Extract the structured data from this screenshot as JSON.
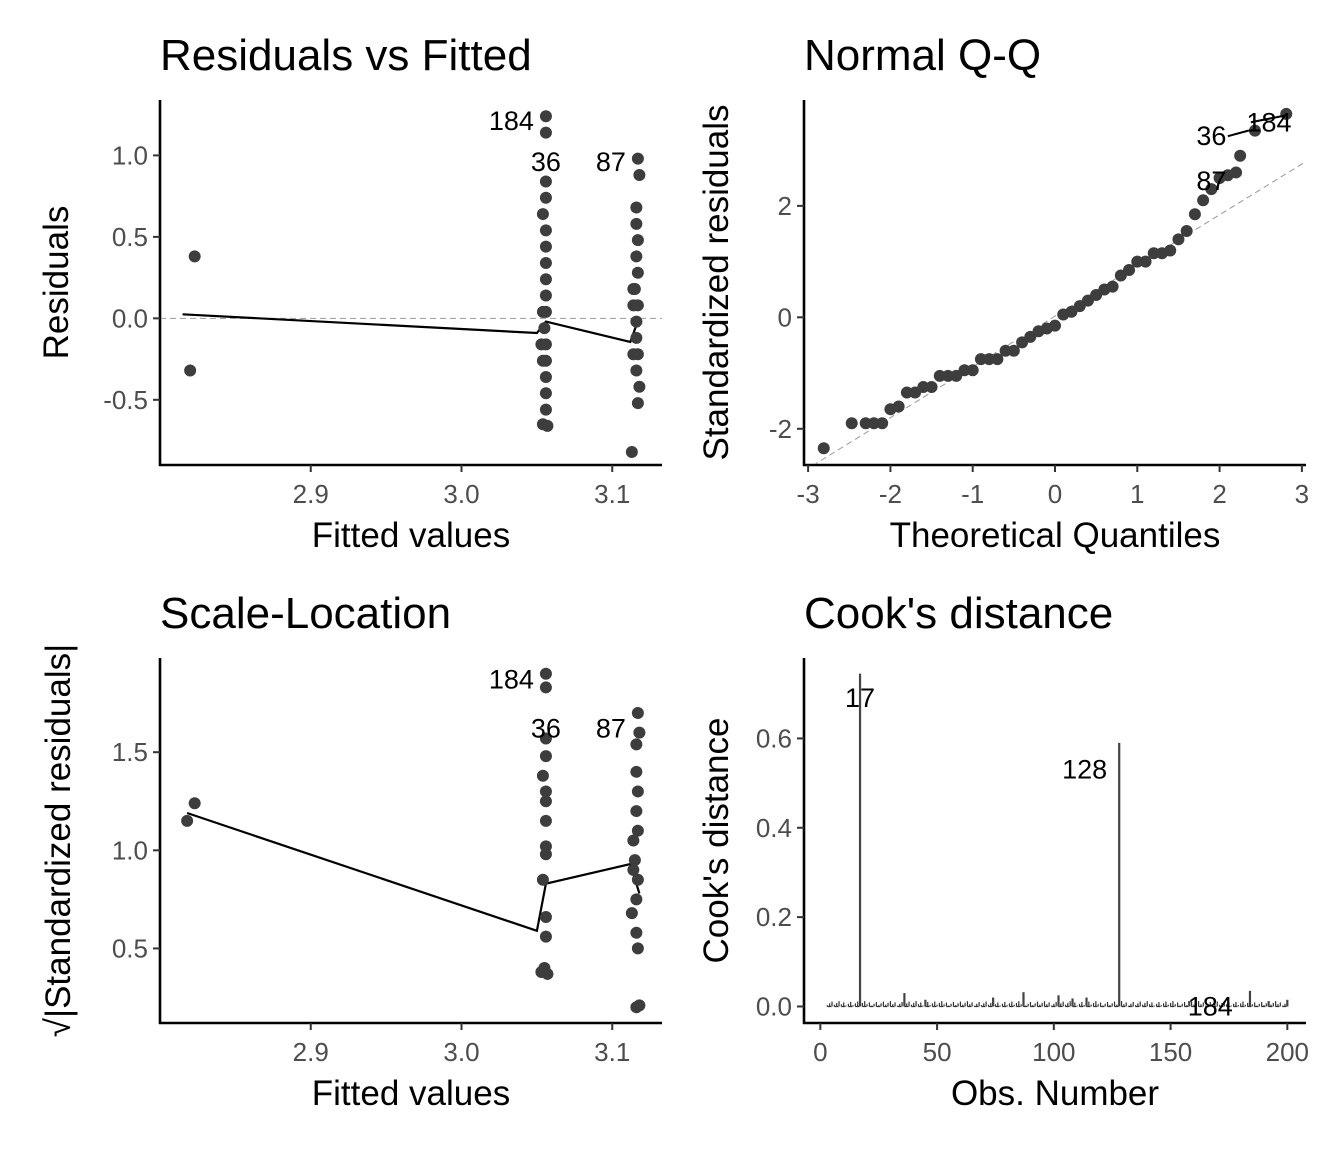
{
  "chart_data": [
    {
      "type": "scatter",
      "title": "Residuals vs Fitted",
      "xlabel": "Fitted values",
      "ylabel": "Residuals",
      "xlim": [
        2.8,
        3.133
      ],
      "ylim": [
        -0.9,
        1.34
      ],
      "xticks": [
        2.9,
        3.0,
        3.1
      ],
      "xtick_labels": [
        "2.9",
        "3.0",
        "3.1"
      ],
      "yticks": [
        -0.5,
        0.0,
        0.5,
        1.0
      ],
      "ytick_labels": [
        "-0.5",
        "0.0",
        "0.5",
        "1.0"
      ],
      "grid": false,
      "reference_line": {
        "y": 0
      },
      "points": [
        [
          2.823,
          0.38
        ],
        [
          2.82,
          -0.32
        ],
        [
          3.056,
          1.24
        ],
        [
          3.056,
          1.14
        ],
        [
          3.056,
          0.84
        ],
        [
          3.056,
          0.74
        ],
        [
          3.054,
          0.64
        ],
        [
          3.056,
          0.54
        ],
        [
          3.056,
          0.44
        ],
        [
          3.056,
          0.34
        ],
        [
          3.056,
          0.24
        ],
        [
          3.056,
          0.14
        ],
        [
          3.056,
          0.04
        ],
        [
          3.055,
          -0.06
        ],
        [
          3.056,
          -0.16
        ],
        [
          3.056,
          -0.26
        ],
        [
          3.056,
          -0.36
        ],
        [
          3.056,
          -0.46
        ],
        [
          3.056,
          -0.56
        ],
        [
          3.054,
          -0.65
        ],
        [
          3.057,
          -0.66
        ],
        [
          3.053,
          -0.16
        ],
        [
          3.054,
          0.04
        ],
        [
          3.054,
          -0.26
        ],
        [
          3.117,
          0.98
        ],
        [
          3.118,
          0.88
        ],
        [
          3.116,
          0.68
        ],
        [
          3.116,
          0.58
        ],
        [
          3.117,
          0.48
        ],
        [
          3.116,
          0.38
        ],
        [
          3.117,
          0.28
        ],
        [
          3.115,
          0.18
        ],
        [
          3.117,
          0.08
        ],
        [
          3.116,
          -0.02
        ],
        [
          3.116,
          -0.12
        ],
        [
          3.117,
          -0.22
        ],
        [
          3.116,
          -0.32
        ],
        [
          3.118,
          -0.42
        ],
        [
          3.117,
          -0.52
        ],
        [
          3.113,
          -0.82
        ],
        [
          3.114,
          0.18
        ],
        [
          3.114,
          -0.22
        ],
        [
          3.114,
          0.08
        ]
      ],
      "smooth_line": [
        [
          2.815,
          0.025
        ],
        [
          3.05,
          -0.09
        ],
        [
          3.056,
          -0.02
        ],
        [
          3.112,
          -0.145
        ],
        [
          3.118,
          0.01
        ]
      ],
      "labels": [
        {
          "text": "184",
          "x": 3.056,
          "y": 1.21,
          "anchor": "right"
        },
        {
          "text": "36",
          "x": 3.056,
          "y": 0.96,
          "anchor": "center"
        },
        {
          "text": "87",
          "x": 3.117,
          "y": 0.96,
          "anchor": "right"
        }
      ]
    },
    {
      "type": "scatter",
      "title": "Normal Q-Q",
      "xlabel": "Theoretical Quantiles",
      "ylabel": "Standardized residuals",
      "xlim": [
        -3.05,
        3.05
      ],
      "ylim": [
        -2.65,
        3.9
      ],
      "xticks": [
        -3,
        -2,
        -1,
        0,
        1,
        2,
        3
      ],
      "xtick_labels": [
        "-3",
        "-2",
        "-1",
        "0",
        "1",
        "2",
        "3"
      ],
      "yticks": [
        -2,
        0,
        2
      ],
      "ytick_labels": [
        "-2",
        "0",
        "2"
      ],
      "grid": false,
      "reference_line": {
        "intercept": 0.02,
        "slope": 0.91
      },
      "points": [
        [
          -2.81,
          -2.35
        ],
        [
          -2.47,
          -1.9
        ],
        [
          -2.3,
          -1.9
        ],
        [
          -2.2,
          -1.9
        ],
        [
          -2.1,
          -1.9
        ],
        [
          -2.0,
          -1.65
        ],
        [
          -1.9,
          -1.6
        ],
        [
          -1.8,
          -1.35
        ],
        [
          -1.7,
          -1.35
        ],
        [
          -1.6,
          -1.25
        ],
        [
          -1.5,
          -1.25
        ],
        [
          -1.4,
          -1.05
        ],
        [
          -1.3,
          -1.05
        ],
        [
          -1.2,
          -1.05
        ],
        [
          -1.1,
          -0.95
        ],
        [
          -1.0,
          -0.95
        ],
        [
          -0.9,
          -0.75
        ],
        [
          -0.8,
          -0.75
        ],
        [
          -0.7,
          -0.75
        ],
        [
          -0.6,
          -0.6
        ],
        [
          -0.5,
          -0.6
        ],
        [
          -0.4,
          -0.45
        ],
        [
          -0.3,
          -0.35
        ],
        [
          -0.2,
          -0.25
        ],
        [
          -0.1,
          -0.2
        ],
        [
          0.0,
          -0.15
        ],
        [
          0.1,
          0.05
        ],
        [
          0.2,
          0.1
        ],
        [
          0.3,
          0.2
        ],
        [
          0.4,
          0.3
        ],
        [
          0.5,
          0.4
        ],
        [
          0.6,
          0.5
        ],
        [
          0.7,
          0.55
        ],
        [
          0.8,
          0.75
        ],
        [
          0.9,
          0.85
        ],
        [
          1.0,
          1.0
        ],
        [
          1.1,
          1.0
        ],
        [
          1.2,
          1.15
        ],
        [
          1.3,
          1.15
        ],
        [
          1.4,
          1.2
        ],
        [
          1.5,
          1.4
        ],
        [
          1.6,
          1.55
        ],
        [
          1.7,
          1.85
        ],
        [
          1.8,
          2.1
        ],
        [
          1.9,
          2.3
        ],
        [
          2.0,
          2.5
        ],
        [
          2.1,
          2.55
        ],
        [
          2.2,
          2.6
        ],
        [
          2.25,
          2.9
        ],
        [
          2.43,
          3.35
        ],
        [
          2.81,
          3.65
        ]
      ],
      "labels": [
        {
          "text": "184",
          "x": 2.6,
          "y": 3.5,
          "anchor": "center"
        },
        {
          "text": "36",
          "x": 1.9,
          "y": 3.25,
          "anchor": "center"
        },
        {
          "text": "87",
          "x": 1.9,
          "y": 2.45,
          "anchor": "center"
        }
      ]
    },
    {
      "type": "scatter",
      "title": "Scale-Location",
      "xlabel": "Fitted values",
      "ylabel": "√|Standardized residuals|",
      "xlim": [
        2.8,
        3.133
      ],
      "ylim": [
        0.12,
        1.98
      ],
      "xticks": [
        2.9,
        3.0,
        3.1
      ],
      "xtick_labels": [
        "2.9",
        "3.0",
        "3.1"
      ],
      "yticks": [
        0.5,
        1.0,
        1.5
      ],
      "ytick_labels": [
        "0.5",
        "1.0",
        "1.5"
      ],
      "grid": false,
      "points": [
        [
          2.818,
          1.15
        ],
        [
          2.823,
          1.24
        ],
        [
          3.056,
          1.9
        ],
        [
          3.056,
          1.83
        ],
        [
          3.056,
          1.57
        ],
        [
          3.056,
          1.48
        ],
        [
          3.054,
          1.38
        ],
        [
          3.056,
          1.25
        ],
        [
          3.056,
          1.15
        ],
        [
          3.056,
          1.02
        ],
        [
          3.054,
          0.85
        ],
        [
          3.056,
          0.66
        ],
        [
          3.055,
          0.4
        ],
        [
          3.053,
          0.38
        ],
        [
          3.057,
          0.37
        ],
        [
          3.056,
          0.56
        ],
        [
          3.056,
          0.98
        ],
        [
          3.056,
          1.3
        ],
        [
          3.117,
          1.7
        ],
        [
          3.118,
          1.6
        ],
        [
          3.116,
          1.54
        ],
        [
          3.116,
          1.4
        ],
        [
          3.117,
          1.3
        ],
        [
          3.116,
          1.2
        ],
        [
          3.117,
          1.1
        ],
        [
          3.115,
          0.95
        ],
        [
          3.117,
          0.85
        ],
        [
          3.116,
          0.75
        ],
        [
          3.116,
          0.58
        ],
        [
          3.117,
          0.5
        ],
        [
          3.116,
          0.2
        ],
        [
          3.118,
          0.21
        ],
        [
          3.114,
          1.05
        ],
        [
          3.113,
          0.68
        ],
        [
          3.114,
          0.9
        ]
      ],
      "smooth_line": [
        [
          2.818,
          1.19
        ],
        [
          3.05,
          0.59
        ],
        [
          3.056,
          0.83
        ],
        [
          3.112,
          0.93
        ],
        [
          3.118,
          0.78
        ]
      ],
      "labels": [
        {
          "text": "184",
          "x": 3.056,
          "y": 1.87,
          "anchor": "right"
        },
        {
          "text": "36",
          "x": 3.056,
          "y": 1.62,
          "anchor": "center"
        },
        {
          "text": "87",
          "x": 3.117,
          "y": 1.62,
          "anchor": "right"
        }
      ]
    },
    {
      "type": "bar",
      "title": "Cook's distance",
      "xlabel": "Obs. Number",
      "ylabel": "Cook's distance",
      "xlim": [
        -7,
        208
      ],
      "ylim": [
        -0.037,
        0.78
      ],
      "xticks": [
        0,
        50,
        100,
        150,
        200
      ],
      "xtick_labels": [
        "0",
        "50",
        "100",
        "150",
        "200"
      ],
      "yticks": [
        0.0,
        0.2,
        0.4,
        0.6
      ],
      "ytick_labels": [
        "0.0",
        "0.2",
        "0.4",
        "0.6"
      ],
      "grid": false,
      "bars": [
        {
          "obs": 17,
          "value": 0.745
        },
        {
          "obs": 128,
          "value": 0.59
        },
        {
          "obs": 36,
          "value": 0.03
        },
        {
          "obs": 45,
          "value": 0.015
        },
        {
          "obs": 74,
          "value": 0.02
        },
        {
          "obs": 87,
          "value": 0.032
        },
        {
          "obs": 102,
          "value": 0.025
        },
        {
          "obs": 108,
          "value": 0.018
        },
        {
          "obs": 114,
          "value": 0.02
        },
        {
          "obs": 158,
          "value": 0.012
        },
        {
          "obs": 184,
          "value": 0.035
        },
        {
          "obs": 192,
          "value": 0.012
        },
        {
          "obs": 200,
          "value": 0.015
        }
      ],
      "baseline_range": [
        3,
        200
      ],
      "labels": [
        {
          "text": "17",
          "x": 17,
          "y": 0.69,
          "anchor": "center"
        },
        {
          "text": "128",
          "x": 128,
          "y": 0.53,
          "anchor": "right"
        },
        {
          "text": "184",
          "x": 167,
          "y": 0.0,
          "anchor": "center"
        }
      ]
    }
  ]
}
